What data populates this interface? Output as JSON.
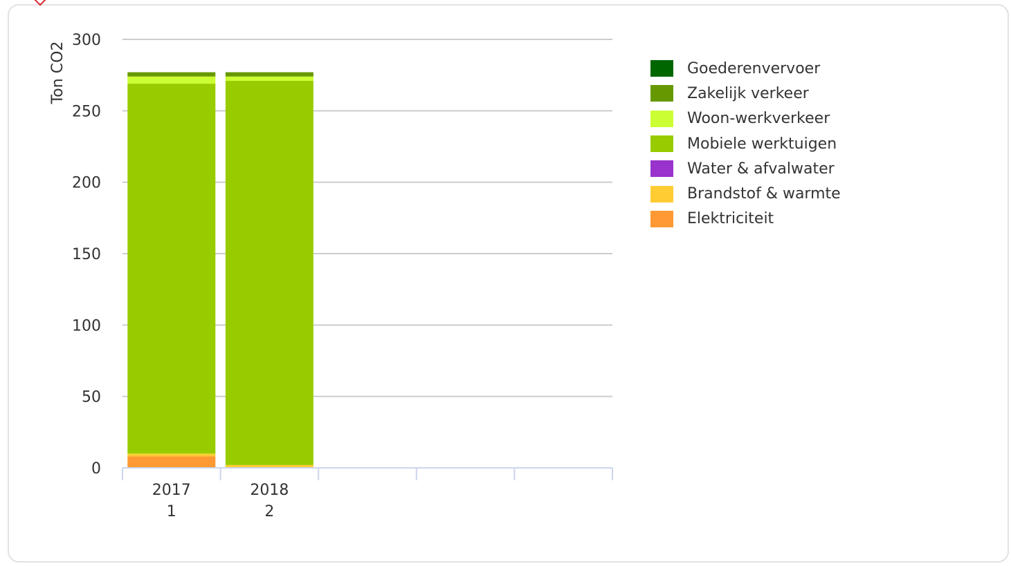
{
  "chart_data": {
    "type": "bar",
    "stacked": true,
    "ylabel": "Ton CO2",
    "ylim": [
      0,
      300
    ],
    "yticks": [
      0,
      50,
      100,
      150,
      200,
      250,
      300
    ],
    "grid": true,
    "legend_position": "right",
    "slot_count": 5,
    "categories": [
      {
        "year": "2017",
        "index": "1"
      },
      {
        "year": "2018",
        "index": "2"
      }
    ],
    "series": [
      {
        "name": "Elektriciteit",
        "color": "#ff9933",
        "values": [
          8,
          0
        ]
      },
      {
        "name": "Brandstof & warmte",
        "color": "#ffcc33",
        "values": [
          2,
          2
        ]
      },
      {
        "name": "Water & afvalwater",
        "color": "#9933cc",
        "values": [
          0,
          0
        ]
      },
      {
        "name": "Mobiele werktuigen",
        "color": "#99cc00",
        "values": [
          259,
          269
        ]
      },
      {
        "name": "Woon-werkverkeer",
        "color": "#ccff33",
        "values": [
          5,
          3
        ]
      },
      {
        "name": "Zakelijk verkeer",
        "color": "#669900",
        "values": [
          3,
          3
        ]
      },
      {
        "name": "Goederenvervoer",
        "color": "#006600",
        "values": [
          0,
          0
        ]
      }
    ]
  }
}
